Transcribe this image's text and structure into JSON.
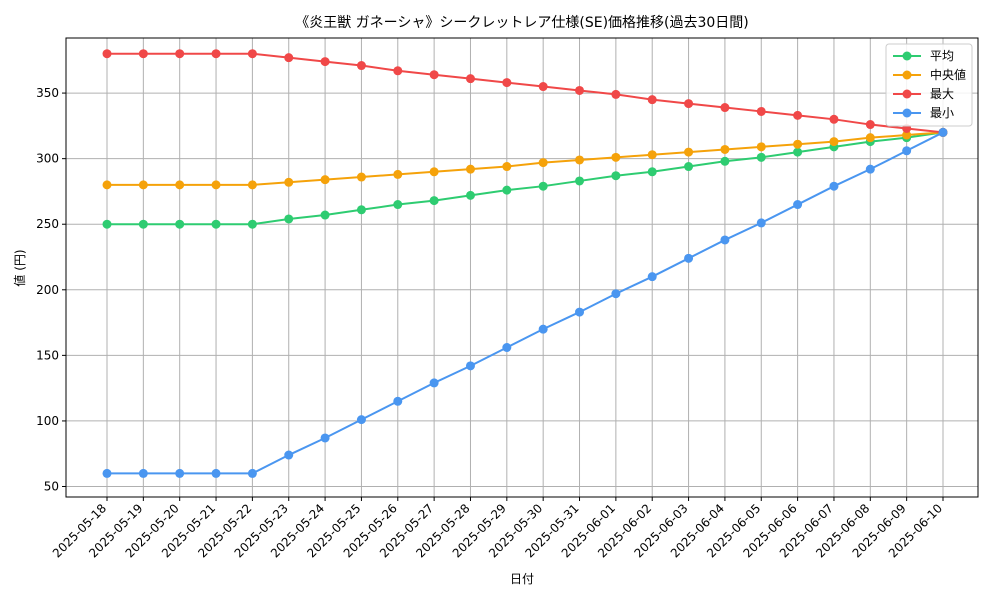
{
  "chart_data": {
    "type": "line",
    "title": "《炎王獣 ガネーシャ》シークレットレア仕様(SE)価格推移(過去30日間)",
    "xlabel": "日付",
    "ylabel": "値 (円)",
    "ylim": [
      42,
      392
    ],
    "yticks": [
      50,
      100,
      150,
      200,
      250,
      300,
      350
    ],
    "grid": true,
    "legend_position": "top-right",
    "categories": [
      "2025-05-18",
      "2025-05-19",
      "2025-05-20",
      "2025-05-21",
      "2025-05-22",
      "2025-05-23",
      "2025-05-24",
      "2025-05-25",
      "2025-05-26",
      "2025-05-27",
      "2025-05-28",
      "2025-05-29",
      "2025-05-30",
      "2025-05-31",
      "2025-06-01",
      "2025-06-02",
      "2025-06-03",
      "2025-06-04",
      "2025-06-05",
      "2025-06-06",
      "2025-06-07",
      "2025-06-08",
      "2025-06-09",
      "2025-06-10"
    ],
    "series": [
      {
        "name": "平均",
        "color": "#2ecc71",
        "values": [
          250,
          250,
          250,
          250,
          250,
          254,
          257,
          261,
          265,
          268,
          272,
          276,
          279,
          283,
          287,
          290,
          294,
          298,
          301,
          305,
          309,
          313,
          316,
          320
        ]
      },
      {
        "name": "中央値",
        "color": "#f5a20a",
        "values": [
          280,
          280,
          280,
          280,
          280,
          282,
          284,
          286,
          288,
          290,
          292,
          294,
          297,
          299,
          301,
          303,
          305,
          307,
          309,
          311,
          313,
          316,
          318,
          320
        ]
      },
      {
        "name": "最大",
        "color": "#f04848",
        "values": [
          380,
          380,
          380,
          380,
          380,
          377,
          374,
          371,
          367,
          364,
          361,
          358,
          355,
          352,
          349,
          345,
          342,
          339,
          336,
          333,
          330,
          326,
          323,
          320
        ]
      },
      {
        "name": "最小",
        "color": "#4a96f0",
        "values": [
          60,
          60,
          60,
          60,
          60,
          74,
          87,
          101,
          115,
          129,
          142,
          156,
          170,
          183,
          197,
          210,
          224,
          238,
          251,
          265,
          279,
          292,
          306,
          320
        ]
      }
    ]
  }
}
